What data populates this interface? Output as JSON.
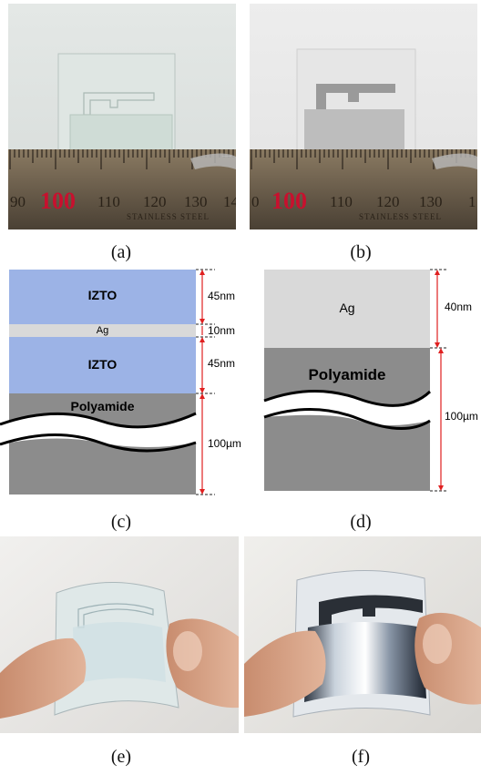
{
  "captions": {
    "a": "(a)",
    "b": "(b)",
    "c": "(c)",
    "d": "(d)",
    "e": "(e)",
    "f": "(f)"
  },
  "photo_a": {
    "ruler_numbers": [
      "90",
      "100",
      "110",
      "120",
      "130",
      "14"
    ],
    "ruler_text": "STAINLESS STEEL"
  },
  "photo_b": {
    "ruler_numbers": [
      "0",
      "100",
      "110",
      "120",
      "130",
      "1"
    ],
    "ruler_text": "STAINLESS STEEL"
  },
  "diagram_c": {
    "layers": [
      "IZTO",
      "Ag",
      "IZTO",
      "Polyamide"
    ],
    "thickness": [
      "45nm",
      "10nm",
      "45nm",
      "100µm"
    ]
  },
  "diagram_d": {
    "layers": [
      "Ag",
      "Polyamide"
    ],
    "thickness": [
      "40nm",
      "100µm"
    ]
  },
  "colors": {
    "izto": "#9cb3e6",
    "ag": "#d9d9d9",
    "substrate": "#8c8c8c",
    "dim_line": "#e02020",
    "ruler_red": "#c8102e"
  }
}
